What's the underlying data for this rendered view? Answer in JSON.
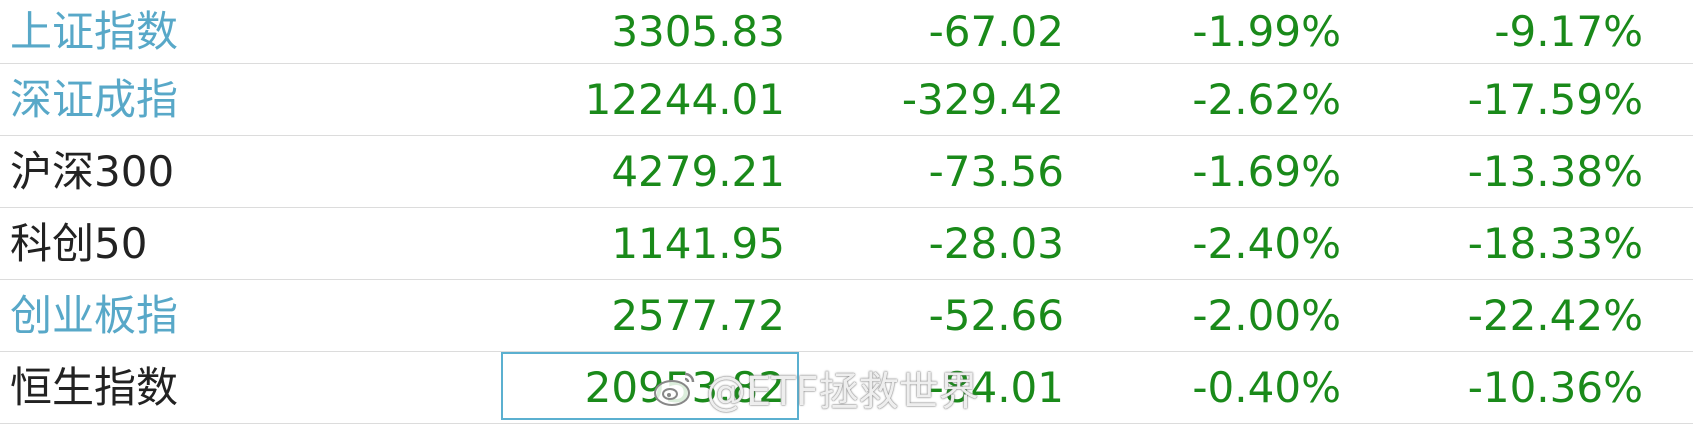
{
  "colors": {
    "link_name": "#58a8c8",
    "plain_name": "#222222",
    "negative": "#1a8a1a",
    "row_border": "#dcdcdc",
    "selection_box": "#5bb0d0"
  },
  "rows": [
    {
      "name": "上证指数",
      "price": "3305.83",
      "change": "-67.02",
      "pct": "-1.99%",
      "ytd": "-9.17%"
    },
    {
      "name": "深证成指",
      "price": "12244.01",
      "change": "-329.42",
      "pct": "-2.62%",
      "ytd": "-17.59%"
    },
    {
      "name": "沪深300",
      "price": "4279.21",
      "change": "-73.56",
      "pct": "-1.69%",
      "ytd": "-13.38%"
    },
    {
      "name": "科创50",
      "price": "1141.95",
      "change": "-28.03",
      "pct": "-2.40%",
      "ytd": "-18.33%"
    },
    {
      "name": "创业板指",
      "price": "2577.72",
      "change": "-52.66",
      "pct": "-2.00%",
      "ytd": "-22.42%"
    },
    {
      "name": "恒生指数",
      "price": "20953.82",
      "change": "-84.01",
      "pct": "-0.40%",
      "ytd": "-10.36%"
    }
  ],
  "watermark": {
    "text": "@ETF拯救世界",
    "logo_icon": "weibo-icon"
  }
}
